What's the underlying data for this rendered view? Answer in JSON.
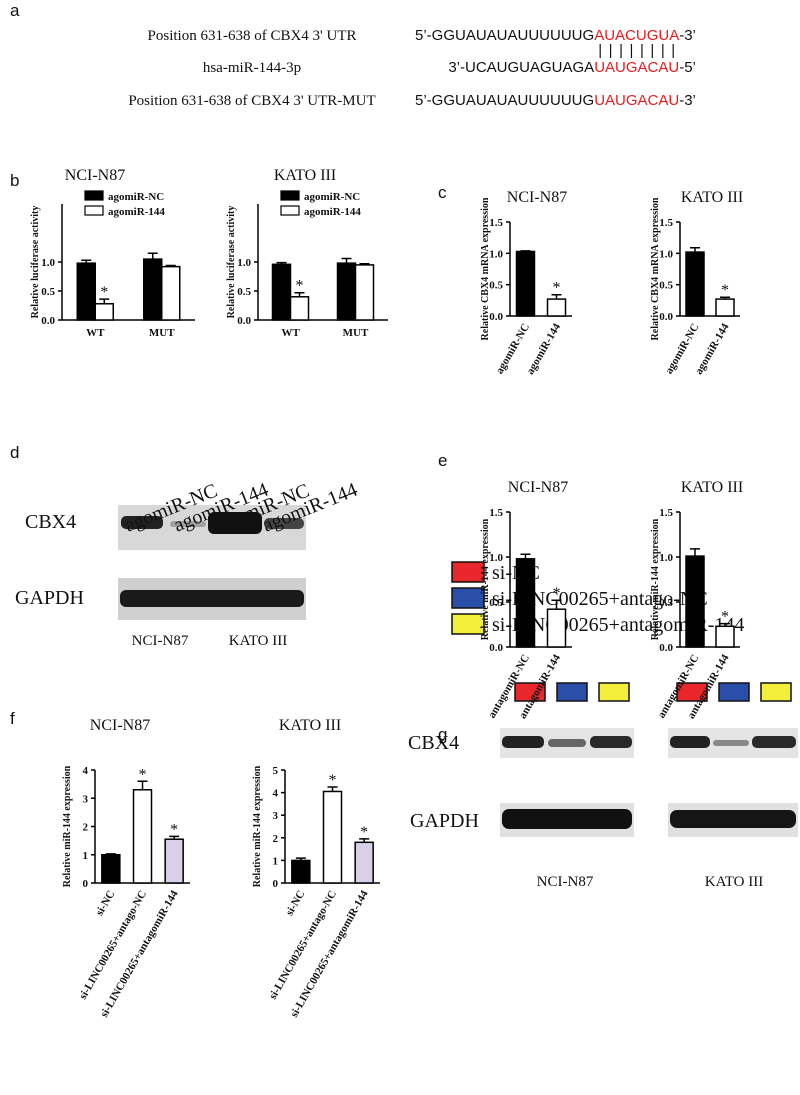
{
  "panel_letters": [
    "a",
    "b",
    "c",
    "d",
    "e",
    "f",
    "g"
  ],
  "sequence_alignment": {
    "rows": [
      {
        "label": "Position 631-638 of CBX4 3' UTR",
        "sequence": [
          "5’-GGUAUAUAUUUUUUG",
          "AUACUGUA",
          "-3’"
        ]
      },
      {
        "label": "hsa-miR-144-3p",
        "sequence": [
          "3’-UCAUGUAGUAGA",
          "UAUGACAU",
          "-5’"
        ]
      },
      {
        "label": "Position 631-638 of CBX4 3' UTR-MUT",
        "sequence": [
          "5’-GGUAUAUAUUUUUUG",
          "UAUGACAU",
          "-3’"
        ]
      }
    ],
    "pairing": "||||||||",
    "highlight_color": "#e02020"
  },
  "western_blot_d": {
    "lanes": [
      "agomiR-NC",
      "agomiR-144",
      "agomiR-NC",
      "agomiR-144"
    ],
    "rows": [
      "CBX4",
      "GAPDH"
    ],
    "cell_lines": [
      "NCI-N87",
      "KATO III"
    ]
  },
  "western_blot_g": {
    "legend": [
      {
        "label": "si-NC",
        "color": "#e8262b"
      },
      {
        "label": "si-LINC00265+antago-NC",
        "color": "#2a4fa8"
      },
      {
        "label": "si-LINC00265+antagomiR-144",
        "color": "#f2ee3a"
      }
    ],
    "rows": [
      "CBX4",
      "GAPDH"
    ],
    "cell_lines": [
      "NCI-N87",
      "KATO III"
    ]
  },
  "chart_data": [
    {
      "type": "bar",
      "title": "NCI-N87",
      "ylabel": "Relative luciferase activity",
      "categories": [
        "WT",
        "MUT"
      ],
      "series": [
        {
          "name": "agomiR-NC",
          "color": "#000000",
          "values": [
            0.98,
            1.05
          ],
          "errors": [
            0.05,
            0.1
          ]
        },
        {
          "name": "agomiR-144",
          "color": "#ffffff",
          "values": [
            0.28,
            0.92
          ],
          "errors": [
            0.08,
            0.02
          ]
        }
      ],
      "ylim": [
        0,
        2.0
      ],
      "yticks": [
        {
          "value": 0,
          "label": "0.0"
        },
        0.5,
        {
          "value": 1,
          "label": "1.0"
        }
      ],
      "annotations": [
        {
          "text": "*",
          "series": 1,
          "category": 0
        }
      ]
    },
    {
      "type": "bar",
      "title": "KATO III",
      "ylabel": "Relative luciferase activity",
      "categories": [
        "WT",
        "MUT"
      ],
      "series": [
        {
          "name": "agomiR-NC",
          "color": "#000000",
          "values": [
            0.96,
            0.98
          ],
          "errors": [
            0.03,
            0.08
          ]
        },
        {
          "name": "agomiR-144",
          "color": "#ffffff",
          "values": [
            0.4,
            0.95
          ],
          "errors": [
            0.07,
            0.02
          ]
        }
      ],
      "ylim": [
        0,
        2.0
      ],
      "yticks": [
        {
          "value": 0,
          "label": "0.0"
        },
        0.5,
        {
          "value": 1,
          "label": "1.0"
        }
      ],
      "annotations": [
        {
          "text": "*",
          "series": 1,
          "category": 0
        }
      ]
    },
    {
      "type": "bar",
      "title": "NCI-N87",
      "ylabel": "Relative CBX4 mRNA expression",
      "categories": [
        "agomiR-NC",
        "agomiR-144"
      ],
      "values": [
        1.03,
        0.27
      ],
      "errors": [
        0.01,
        0.07
      ],
      "colors": [
        "#000000",
        "#ffffff"
      ],
      "ylim": [
        0,
        1.5
      ],
      "yticks": [
        {
          "value": 0,
          "label": "0.0"
        },
        0.5,
        {
          "value": 1,
          "label": "1.0"
        },
        1.5
      ],
      "annotations": [
        {
          "text": "*",
          "category": 1
        }
      ]
    },
    {
      "type": "bar",
      "title": "KATO III",
      "ylabel": "Relative CBX4 mRNA expression",
      "categories": [
        "agomiR-NC",
        "agomiR-144"
      ],
      "values": [
        1.02,
        0.27
      ],
      "errors": [
        0.07,
        0.03
      ],
      "colors": [
        "#000000",
        "#ffffff"
      ],
      "ylim": [
        0,
        1.5
      ],
      "yticks": [
        {
          "value": 0,
          "label": "0.0"
        },
        0.5,
        {
          "value": 1,
          "label": "1.0"
        },
        1.5
      ],
      "annotations": [
        {
          "text": "*",
          "category": 1
        }
      ]
    },
    {
      "type": "bar",
      "title": "NCI-N87",
      "ylabel": "Relative miR-144 expression",
      "categories": [
        "antagomiR-NC",
        "antagomiR-144"
      ],
      "values": [
        0.98,
        0.42
      ],
      "errors": [
        0.05,
        0.1
      ],
      "colors": [
        "#000000",
        "#ffffff"
      ],
      "ylim": [
        0,
        1.5
      ],
      "yticks": [
        {
          "value": 0,
          "label": "0.0"
        },
        0.5,
        {
          "value": 1,
          "label": "1.0"
        },
        1.5
      ],
      "annotations": [
        {
          "text": "*",
          "category": 1
        }
      ]
    },
    {
      "type": "bar",
      "title": "KATO III",
      "ylabel": "Relative miR-144 expression",
      "categories": [
        "antagomiR-NC",
        "antagomiR-144"
      ],
      "values": [
        1.01,
        0.23
      ],
      "errors": [
        0.08,
        0.03
      ],
      "colors": [
        "#000000",
        "#ffffff"
      ],
      "ylim": [
        0,
        1.5
      ],
      "yticks": [
        {
          "value": 0,
          "label": "0.0"
        },
        0.5,
        {
          "value": 1,
          "label": "1.0"
        },
        1.5
      ],
      "annotations": [
        {
          "text": "*",
          "category": 1
        }
      ]
    },
    {
      "type": "bar",
      "title": "NCI-N87",
      "ylabel": "Relative miR-144 expression",
      "categories": [
        "si-NC",
        "si-LINC00265+antago-NC",
        "si-LINC00265+antagomiR-144"
      ],
      "values": [
        1.0,
        3.3,
        1.55
      ],
      "errors": [
        0.03,
        0.3,
        0.1
      ],
      "colors": [
        "#000000",
        "#ffffff",
        "#d9d0e8"
      ],
      "ylim": [
        0,
        4
      ],
      "yticks": [
        0,
        1,
        2,
        3,
        4
      ],
      "annotations": [
        {
          "text": "*",
          "category": 1
        },
        {
          "text": "*",
          "category": 2
        }
      ]
    },
    {
      "type": "bar",
      "title": "KATO III",
      "ylabel": "Relative miR-144 expression",
      "categories": [
        "si-NC",
        "si-LINC00265+antago-NC",
        "si-LINC00265+antagomiR-144"
      ],
      "values": [
        1.0,
        4.05,
        1.8
      ],
      "errors": [
        0.1,
        0.2,
        0.15
      ],
      "colors": [
        "#000000",
        "#ffffff",
        "#d9d0e8"
      ],
      "ylim": [
        0,
        5
      ],
      "yticks": [
        0,
        1,
        2,
        3,
        4,
        5
      ],
      "annotations": [
        {
          "text": "*",
          "category": 1
        },
        {
          "text": "*",
          "category": 2
        }
      ]
    }
  ]
}
